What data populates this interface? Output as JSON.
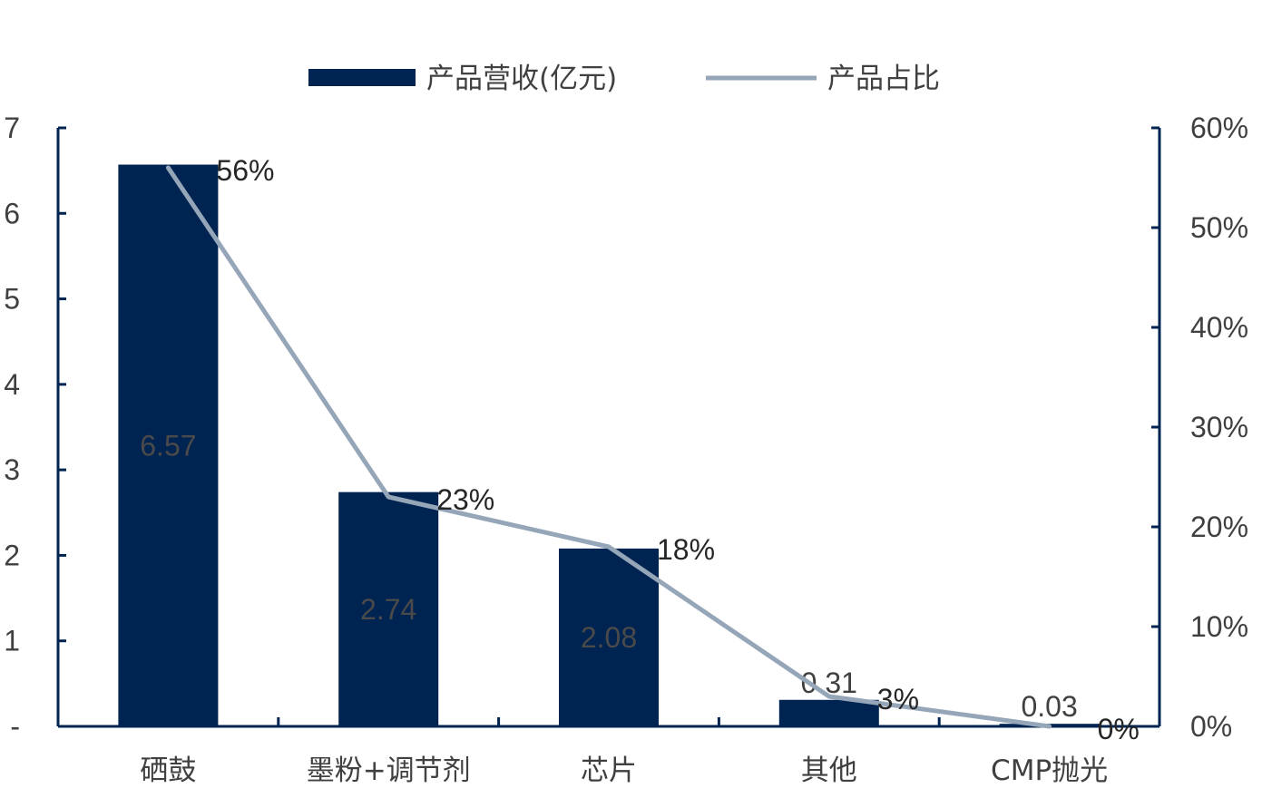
{
  "chart_data": {
    "type": "bar",
    "categories": [
      "硒鼓",
      "墨粉+调节剂",
      "芯片",
      "其他",
      "CMP抛光"
    ],
    "series": [
      {
        "name": "产品营收(亿元)",
        "kind": "bar",
        "axis": "left",
        "values": [
          6.57,
          2.74,
          2.08,
          0.31,
          0.03
        ],
        "labels": [
          "6.57",
          "2.74",
          "2.08",
          "0.31",
          "0.03"
        ],
        "color": "#002451"
      },
      {
        "name": "产品占比",
        "kind": "line",
        "axis": "right",
        "values": [
          0.56,
          0.23,
          0.18,
          0.03,
          0.0
        ],
        "labels": [
          "56%",
          "23%",
          "18%",
          "3%",
          "0%"
        ],
        "color": "#95A6B9"
      }
    ],
    "y_left": {
      "range": [
        0,
        7
      ],
      "ticks": [
        "-",
        "1",
        "2",
        "3",
        "4",
        "5",
        "6",
        "7"
      ]
    },
    "y_right": {
      "range": [
        0,
        0.6
      ],
      "ticks": [
        "0%",
        "10%",
        "20%",
        "30%",
        "40%",
        "50%",
        "60%"
      ]
    },
    "legend": {
      "position": "top-center"
    },
    "grid": false,
    "axis_color": "#002451"
  }
}
